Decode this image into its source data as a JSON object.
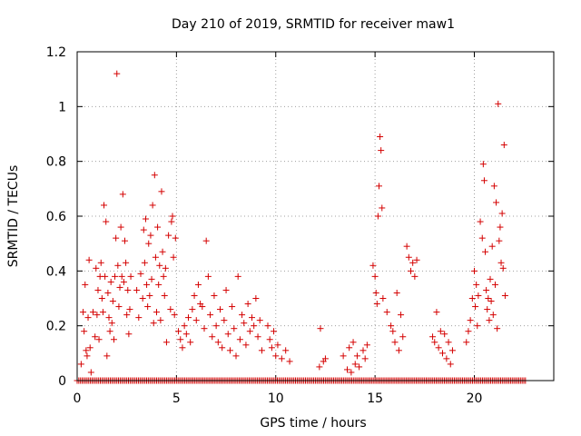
{
  "chart_data": {
    "type": "scatter",
    "title": "Day 210 of 2019, SRMTID for receiver maw1",
    "xlabel": "GPS time / hours",
    "ylabel": "SRMTID / TECUs",
    "xlim": [
      0,
      24
    ],
    "ylim": [
      0,
      1.2
    ],
    "grid": true,
    "marker": "+",
    "color": "#d40000",
    "x_ticks": [
      0,
      5,
      10,
      15,
      20
    ],
    "x_tick_labels": [
      "0",
      "5",
      "10",
      "15",
      "20"
    ],
    "y_ticks": [
      0,
      0.2,
      0.4,
      0.6,
      0.8,
      1,
      1.2
    ],
    "y_tick_labels": [
      "0",
      "0.2",
      "0.4",
      "0.6",
      "0.8",
      "1",
      "1.2"
    ],
    "zero_baseline": {
      "x_start": 0,
      "x_end": 22.6,
      "x_step": 0.0833,
      "y": 0
    },
    "series": [
      {
        "name": "maw1",
        "points": [
          [
            0.2,
            0.06
          ],
          [
            0.3,
            0.25
          ],
          [
            0.35,
            0.18
          ],
          [
            0.4,
            0.35
          ],
          [
            0.45,
            0.11
          ],
          [
            0.5,
            0.09
          ],
          [
            0.55,
            0.23
          ],
          [
            0.6,
            0.44
          ],
          [
            0.65,
            0.12
          ],
          [
            0.7,
            0.03
          ],
          [
            0.8,
            0.25
          ],
          [
            0.9,
            0.16
          ],
          [
            0.95,
            0.41
          ],
          [
            1.0,
            0.24
          ],
          [
            1.05,
            0.33
          ],
          [
            1.1,
            0.15
          ],
          [
            1.15,
            0.38
          ],
          [
            1.2,
            0.43
          ],
          [
            1.25,
            0.3
          ],
          [
            1.3,
            0.25
          ],
          [
            1.35,
            0.64
          ],
          [
            1.4,
            0.38
          ],
          [
            1.45,
            0.58
          ],
          [
            1.5,
            0.09
          ],
          [
            1.55,
            0.32
          ],
          [
            1.6,
            0.23
          ],
          [
            1.65,
            0.18
          ],
          [
            1.7,
            0.36
          ],
          [
            1.75,
            0.21
          ],
          [
            1.8,
            0.29
          ],
          [
            1.85,
            0.15
          ],
          [
            1.9,
            0.38
          ],
          [
            1.95,
            0.52
          ],
          [
            2.0,
            1.12
          ],
          [
            2.05,
            0.42
          ],
          [
            2.1,
            0.27
          ],
          [
            2.15,
            0.34
          ],
          [
            2.2,
            0.56
          ],
          [
            2.25,
            0.38
          ],
          [
            2.3,
            0.68
          ],
          [
            2.35,
            0.36
          ],
          [
            2.4,
            0.51
          ],
          [
            2.45,
            0.43
          ],
          [
            2.5,
            0.24
          ],
          [
            2.55,
            0.33
          ],
          [
            2.6,
            0.17
          ],
          [
            2.65,
            0.26
          ],
          [
            2.7,
            0.38
          ],
          [
            3.0,
            0.33
          ],
          [
            3.1,
            0.23
          ],
          [
            3.2,
            0.39
          ],
          [
            3.3,
            0.3
          ],
          [
            3.35,
            0.55
          ],
          [
            3.4,
            0.43
          ],
          [
            3.45,
            0.59
          ],
          [
            3.5,
            0.35
          ],
          [
            3.55,
            0.27
          ],
          [
            3.6,
            0.5
          ],
          [
            3.65,
            0.31
          ],
          [
            3.7,
            0.53
          ],
          [
            3.75,
            0.37
          ],
          [
            3.8,
            0.64
          ],
          [
            3.85,
            0.21
          ],
          [
            3.9,
            0.75
          ],
          [
            3.95,
            0.45
          ],
          [
            4.0,
            0.25
          ],
          [
            4.05,
            0.56
          ],
          [
            4.1,
            0.35
          ],
          [
            4.15,
            0.42
          ],
          [
            4.2,
            0.22
          ],
          [
            4.25,
            0.69
          ],
          [
            4.3,
            0.47
          ],
          [
            4.35,
            0.38
          ],
          [
            4.4,
            0.31
          ],
          [
            4.45,
            0.41
          ],
          [
            4.5,
            0.14
          ],
          [
            4.6,
            0.53
          ],
          [
            4.7,
            0.26
          ],
          [
            4.75,
            0.58
          ],
          [
            4.8,
            0.6
          ],
          [
            4.85,
            0.45
          ],
          [
            4.9,
            0.24
          ],
          [
            4.95,
            0.52
          ],
          [
            5.1,
            0.18
          ],
          [
            5.2,
            0.15
          ],
          [
            5.3,
            0.12
          ],
          [
            5.4,
            0.2
          ],
          [
            5.5,
            0.17
          ],
          [
            5.6,
            0.23
          ],
          [
            5.7,
            0.14
          ],
          [
            5.8,
            0.26
          ],
          [
            5.9,
            0.31
          ],
          [
            6.0,
            0.22
          ],
          [
            6.1,
            0.35
          ],
          [
            6.2,
            0.28
          ],
          [
            6.3,
            0.27
          ],
          [
            6.4,
            0.19
          ],
          [
            6.5,
            0.51
          ],
          [
            6.6,
            0.38
          ],
          [
            6.7,
            0.24
          ],
          [
            6.8,
            0.16
          ],
          [
            6.9,
            0.31
          ],
          [
            7.0,
            0.2
          ],
          [
            7.1,
            0.14
          ],
          [
            7.2,
            0.26
          ],
          [
            7.3,
            0.12
          ],
          [
            7.4,
            0.22
          ],
          [
            7.5,
            0.33
          ],
          [
            7.6,
            0.17
          ],
          [
            7.7,
            0.11
          ],
          [
            7.8,
            0.27
          ],
          [
            7.9,
            0.19
          ],
          [
            8.0,
            0.09
          ],
          [
            8.1,
            0.38
          ],
          [
            8.2,
            0.15
          ],
          [
            8.3,
            0.24
          ],
          [
            8.4,
            0.21
          ],
          [
            8.5,
            0.13
          ],
          [
            8.6,
            0.28
          ],
          [
            8.7,
            0.18
          ],
          [
            8.8,
            0.23
          ],
          [
            8.9,
            0.2
          ],
          [
            9.0,
            0.3
          ],
          [
            9.1,
            0.16
          ],
          [
            9.2,
            0.22
          ],
          [
            9.3,
            0.11
          ],
          [
            9.6,
            0.2
          ],
          [
            9.7,
            0.15
          ],
          [
            9.8,
            0.12
          ],
          [
            9.9,
            0.18
          ],
          [
            10.0,
            0.09
          ],
          [
            10.1,
            0.13
          ],
          [
            10.3,
            0.08
          ],
          [
            10.5,
            0.11
          ],
          [
            10.7,
            0.07
          ],
          [
            12.2,
            0.05
          ],
          [
            12.25,
            0.19
          ],
          [
            12.4,
            0.07
          ],
          [
            12.5,
            0.08
          ],
          [
            13.4,
            0.09
          ],
          [
            13.6,
            0.04
          ],
          [
            13.7,
            0.12
          ],
          [
            13.8,
            0.03
          ],
          [
            13.9,
            0.14
          ],
          [
            14.0,
            0.06
          ],
          [
            14.1,
            0.09
          ],
          [
            14.2,
            0.05
          ],
          [
            14.4,
            0.11
          ],
          [
            14.5,
            0.08
          ],
          [
            14.6,
            0.13
          ],
          [
            14.9,
            0.42
          ],
          [
            15.0,
            0.38
          ],
          [
            15.05,
            0.32
          ],
          [
            15.1,
            0.28
          ],
          [
            15.15,
            0.6
          ],
          [
            15.2,
            0.71
          ],
          [
            15.25,
            0.89
          ],
          [
            15.3,
            0.84
          ],
          [
            15.35,
            0.63
          ],
          [
            15.4,
            0.3
          ],
          [
            15.6,
            0.25
          ],
          [
            15.8,
            0.2
          ],
          [
            15.9,
            0.18
          ],
          [
            16.0,
            0.14
          ],
          [
            16.1,
            0.32
          ],
          [
            16.2,
            0.11
          ],
          [
            16.3,
            0.24
          ],
          [
            16.4,
            0.16
          ],
          [
            16.6,
            0.49
          ],
          [
            16.7,
            0.45
          ],
          [
            16.8,
            0.4
          ],
          [
            16.9,
            0.43
          ],
          [
            17.0,
            0.38
          ],
          [
            17.1,
            0.44
          ],
          [
            17.9,
            0.16
          ],
          [
            18.0,
            0.14
          ],
          [
            18.1,
            0.25
          ],
          [
            18.2,
            0.12
          ],
          [
            18.3,
            0.18
          ],
          [
            18.4,
            0.1
          ],
          [
            18.5,
            0.17
          ],
          [
            18.6,
            0.08
          ],
          [
            18.7,
            0.14
          ],
          [
            18.8,
            0.06
          ],
          [
            18.9,
            0.11
          ],
          [
            19.6,
            0.14
          ],
          [
            19.7,
            0.18
          ],
          [
            19.8,
            0.22
          ],
          [
            19.9,
            0.3
          ],
          [
            20.0,
            0.4
          ],
          [
            20.05,
            0.27
          ],
          [
            20.1,
            0.35
          ],
          [
            20.15,
            0.2
          ],
          [
            20.2,
            0.31
          ],
          [
            20.3,
            0.58
          ],
          [
            20.4,
            0.52
          ],
          [
            20.45,
            0.79
          ],
          [
            20.5,
            0.73
          ],
          [
            20.55,
            0.47
          ],
          [
            20.6,
            0.33
          ],
          [
            20.65,
            0.26
          ],
          [
            20.7,
            0.3
          ],
          [
            20.75,
            0.22
          ],
          [
            20.8,
            0.37
          ],
          [
            20.85,
            0.29
          ],
          [
            20.9,
            0.49
          ],
          [
            20.95,
            0.24
          ],
          [
            21.0,
            0.71
          ],
          [
            21.05,
            0.35
          ],
          [
            21.1,
            0.65
          ],
          [
            21.15,
            0.19
          ],
          [
            21.2,
            1.01
          ],
          [
            21.25,
            0.51
          ],
          [
            21.3,
            0.56
          ],
          [
            21.35,
            0.43
          ],
          [
            21.4,
            0.61
          ],
          [
            21.45,
            0.41
          ],
          [
            21.5,
            0.86
          ],
          [
            21.55,
            0.31
          ]
        ]
      }
    ]
  }
}
